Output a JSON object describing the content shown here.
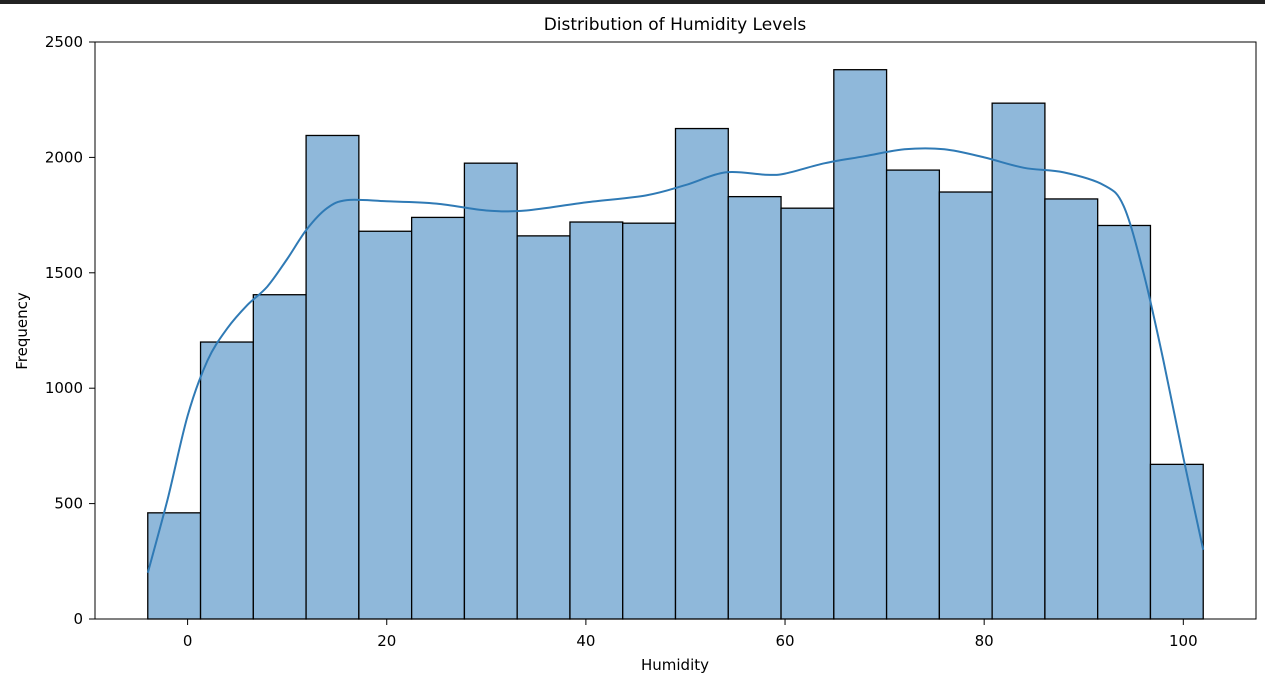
{
  "chart_data": {
    "type": "bar",
    "title": "Distribution of Humidity Levels",
    "xlabel": "Humidity",
    "ylabel": "Frequency",
    "xlim": [
      -9.3,
      107.3
    ],
    "ylim": [
      0,
      2500
    ],
    "xticks": [
      0,
      20,
      40,
      60,
      80,
      100
    ],
    "yticks": [
      0,
      500,
      1000,
      1500,
      2000,
      2500
    ],
    "grid": false,
    "bar_color": "#8fb8da",
    "edge_color": "#000000",
    "kde_color": "#2f7ab5",
    "bins": [
      {
        "x0": -4.0,
        "x1": 1.3,
        "value": 460
      },
      {
        "x0": 1.3,
        "x1": 6.6,
        "value": 1200
      },
      {
        "x0": 6.6,
        "x1": 11.9,
        "value": 1405
      },
      {
        "x0": 11.9,
        "x1": 17.2,
        "value": 2095
      },
      {
        "x0": 17.2,
        "x1": 22.5,
        "value": 1680
      },
      {
        "x0": 22.5,
        "x1": 27.8,
        "value": 1740
      },
      {
        "x0": 27.8,
        "x1": 33.1,
        "value": 1975
      },
      {
        "x0": 33.1,
        "x1": 38.4,
        "value": 1660
      },
      {
        "x0": 38.4,
        "x1": 43.7,
        "value": 1720
      },
      {
        "x0": 43.7,
        "x1": 49.0,
        "value": 1715
      },
      {
        "x0": 49.0,
        "x1": 54.3,
        "value": 2125
      },
      {
        "x0": 54.3,
        "x1": 59.6,
        "value": 1830
      },
      {
        "x0": 59.6,
        "x1": 64.9,
        "value": 1780
      },
      {
        "x0": 64.9,
        "x1": 70.2,
        "value": 2380
      },
      {
        "x0": 70.2,
        "x1": 75.5,
        "value": 1945
      },
      {
        "x0": 75.5,
        "x1": 80.8,
        "value": 1850
      },
      {
        "x0": 80.8,
        "x1": 86.1,
        "value": 2235
      },
      {
        "x0": 86.1,
        "x1": 91.4,
        "value": 1820
      },
      {
        "x0": 91.4,
        "x1": 96.7,
        "value": 1705
      },
      {
        "x0": 96.7,
        "x1": 102.0,
        "value": 670
      }
    ],
    "kde": {
      "x": [
        -4,
        -2,
        0,
        2,
        4,
        6,
        8,
        10,
        12,
        14,
        16,
        20,
        25,
        30,
        34,
        40,
        46,
        50,
        54,
        58,
        60,
        64,
        68,
        72,
        76,
        80,
        84,
        88,
        92,
        94,
        96,
        98,
        100,
        102
      ],
      "y": [
        200,
        520,
        880,
        1120,
        1260,
        1360,
        1440,
        1560,
        1690,
        1780,
        1815,
        1810,
        1800,
        1770,
        1770,
        1805,
        1835,
        1880,
        1935,
        1925,
        1930,
        1975,
        2005,
        2035,
        2035,
        2000,
        1955,
        1935,
        1880,
        1790,
        1500,
        1120,
        700,
        300
      ]
    }
  }
}
